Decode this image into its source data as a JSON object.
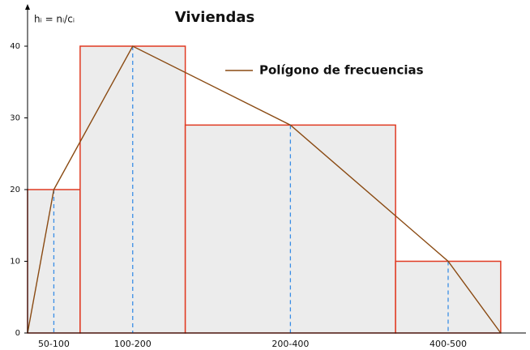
{
  "chart_data": {
    "type": "histogram",
    "title": "Viviendas",
    "y_label": "hᵢ = nᵢ/cᵢ",
    "bins": [
      50,
      100,
      200,
      400,
      500
    ],
    "values": [
      20,
      40,
      29,
      10
    ],
    "categories": [
      "50-100",
      "100-200",
      "200-400",
      "400-500"
    ],
    "color": "#ececec",
    "edge_color": "#e03a22",
    "polygon": {
      "name": "Polígono de frecuencias",
      "color": "#8a4a12",
      "x": [
        50,
        75,
        150,
        300,
        450,
        500
      ],
      "values": [
        0,
        20,
        40,
        29,
        10,
        0
      ]
    },
    "xlim": [
      50,
      524
    ],
    "ylim": [
      0,
      45
    ],
    "yticks": [
      0,
      10,
      20,
      30,
      40
    ]
  }
}
